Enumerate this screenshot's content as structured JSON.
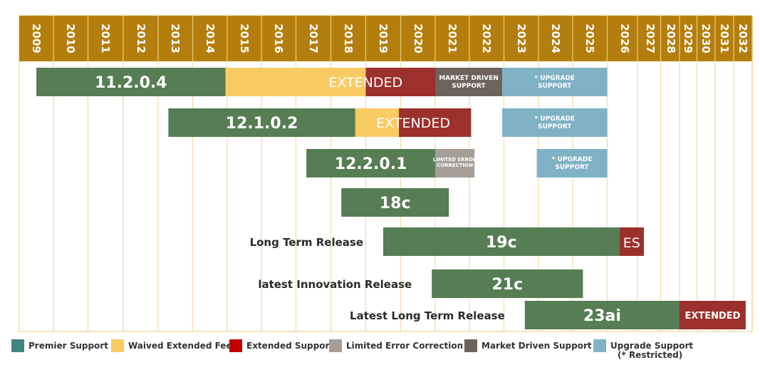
{
  "chart_data": {
    "type": "gantt",
    "x": [
      "2009",
      "2010",
      "2011",
      "2012",
      "2013",
      "2014",
      "2015",
      "2016",
      "2017",
      "2018",
      "2019",
      "2020",
      "2021",
      "2022",
      "2023",
      "2024",
      "2025",
      "2026",
      "2027",
      "2028",
      "2029",
      "2030",
      "2031",
      "2032"
    ],
    "rows": [
      {
        "label": "11.2.0.4",
        "annotation": "",
        "segments": [
          {
            "start": 2009.0,
            "end": 2014.45,
            "kind": "premier",
            "text": "11.2.0.4"
          },
          {
            "start": 2014.45,
            "end": 2018.5,
            "kind": "waived",
            "text": ""
          },
          {
            "start": 2018.5,
            "end": 2020.5,
            "kind": "extended",
            "text": ""
          },
          {
            "start": 2020.5,
            "end": 2022.45,
            "kind": "market",
            "text": "MARKET DRIVEN SUPPORT"
          },
          {
            "start": 2022.45,
            "end": 2025.5,
            "kind": "upgrade",
            "text": "* UPGRADE SUPPORT"
          }
        ],
        "overlay": {
          "text": "EXTENDED",
          "start": 2016.5,
          "end": 2020.5
        }
      },
      {
        "label": "12.1.0.2",
        "annotation": "",
        "segments": [
          {
            "start": 2012.8,
            "end": 2018.2,
            "kind": "premier",
            "text": "12.1.0.2"
          },
          {
            "start": 2018.2,
            "end": 2019.45,
            "kind": "waived",
            "text": ""
          },
          {
            "start": 2019.45,
            "end": 2021.55,
            "kind": "extended",
            "text": ""
          },
          {
            "start": 2022.45,
            "end": 2025.5,
            "kind": "upgrade",
            "text": "* UPGRADE SUPPORT"
          }
        ],
        "overlay": {
          "text": "EXTENDED",
          "start": 2018.2,
          "end": 2021.55
        }
      },
      {
        "label": "12.2.0.1",
        "annotation": "",
        "segments": [
          {
            "start": 2016.8,
            "end": 2020.5,
            "kind": "premier",
            "text": "12.2.0.1"
          },
          {
            "start": 2020.5,
            "end": 2021.65,
            "kind": "limited",
            "text": "LIMITED ERROR CORRECTION"
          },
          {
            "start": 2023.45,
            "end": 2025.5,
            "kind": "upgrade",
            "text": "* UPGRADE SUPPORT"
          }
        ],
        "overlay": null
      },
      {
        "label": "18c",
        "annotation": "",
        "segments": [
          {
            "start": 2017.8,
            "end": 2020.9,
            "kind": "premier",
            "text": "18c"
          }
        ],
        "overlay": null
      },
      {
        "label": "19c",
        "annotation": "Long Term Release",
        "segments": [
          {
            "start": 2019.0,
            "end": 2025.85,
            "kind": "premier",
            "text": "19c"
          },
          {
            "start": 2025.85,
            "end": 2026.75,
            "kind": "extended",
            "text": "ES"
          }
        ],
        "overlay": null
      },
      {
        "label": "21c",
        "annotation": "latest Innovation Release",
        "segments": [
          {
            "start": 2020.4,
            "end": 2024.8,
            "kind": "premier",
            "text": "21c"
          }
        ],
        "overlay": null
      },
      {
        "label": "23ai",
        "annotation": "Latest Long Term Release",
        "segments": [
          {
            "start": 2023.1,
            "end": 2028.5,
            "kind": "premier",
            "text": "23ai"
          },
          {
            "start": 2028.5,
            "end": 2032.15,
            "kind": "extended",
            "text": "EXTENDED"
          }
        ],
        "overlay": null
      }
    ],
    "legend": [
      {
        "kind": "premier",
        "label": "Premier Support"
      },
      {
        "kind": "waived",
        "label": "Waived Extended Fee"
      },
      {
        "kind": "extended",
        "label": "Extended Support"
      },
      {
        "kind": "limited",
        "label": "Limited Error Correction"
      },
      {
        "kind": "market",
        "label": "Market Driven Support"
      },
      {
        "kind": "upgrade",
        "label": "Upgrade Support",
        "note": "(* Restricted)"
      }
    ],
    "colors": {
      "premier": "#567d53",
      "waived": "#f8cb63",
      "extended": "#9b302c",
      "limited": "#a59e97",
      "market": "#6e635c",
      "upgrade": "#80b2c5",
      "legend_premier": "#3f8680",
      "legend_extended": "#c00000",
      "header": "#b47e0e",
      "grid": "#f3dca2"
    },
    "grid": true,
    "legend_position": "bottom"
  }
}
